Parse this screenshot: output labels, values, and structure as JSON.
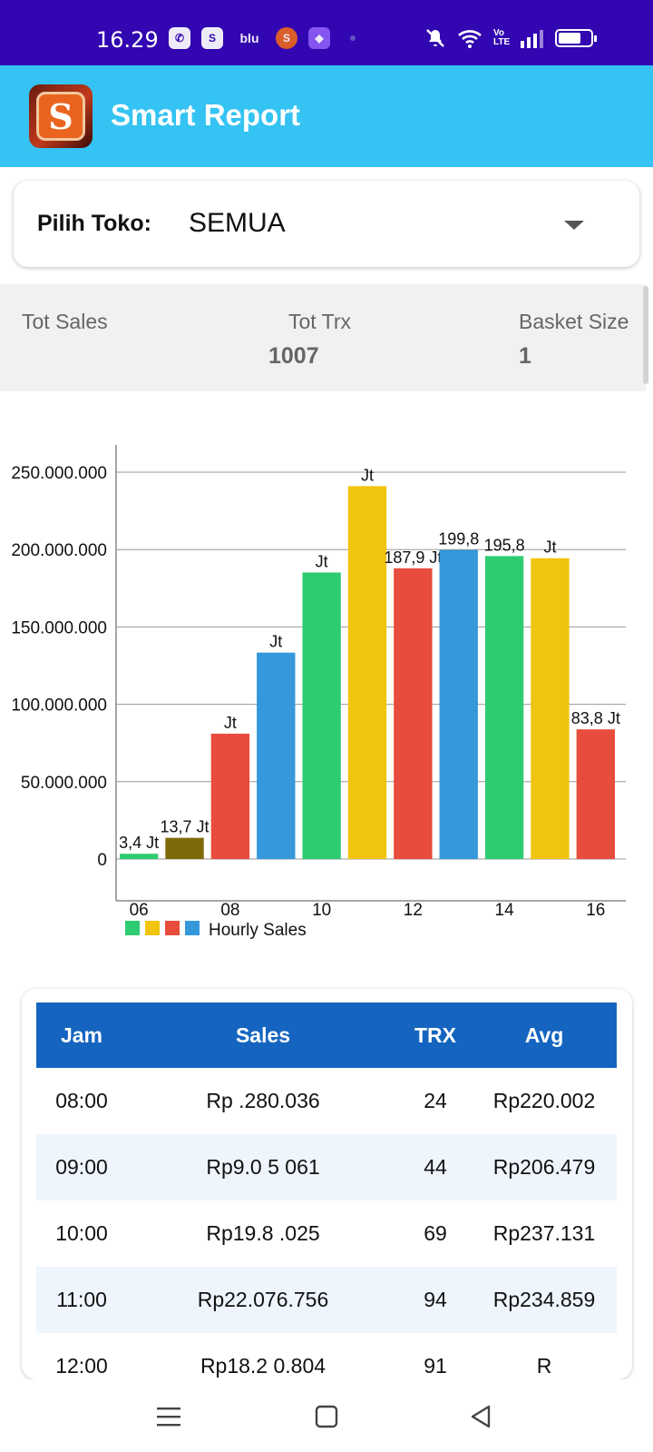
{
  "status_bar": {
    "time": "16.29",
    "left_icons": [
      "whatsapp-icon",
      "shopee-icon",
      "blu-icon",
      "shop-icon",
      "app-icon"
    ],
    "blu_text": "blu",
    "right_icons": [
      "mute-icon",
      "wifi-icon",
      "volte-icon",
      "signal-icon",
      "battery-icon"
    ],
    "volte_text": "Vo LTE"
  },
  "app_bar": {
    "logo_letter": "S",
    "title": "Smart Report"
  },
  "store_selector": {
    "label": "Pilih Toko:",
    "value": "SEMUA"
  },
  "summary": {
    "tot_sales_label": "Tot Sales",
    "tot_sales_value": "",
    "tot_trx_label": "Tot Trx",
    "tot_trx_value": "1007",
    "basket_size_label": "Basket Size",
    "basket_size_value": "1"
  },
  "chart_data": {
    "type": "bar",
    "categories": [
      "06",
      "07",
      "08",
      "09",
      "10",
      "11",
      "12",
      "13",
      "14",
      "15",
      "16"
    ],
    "x_tick_labels": [
      "06",
      "08",
      "10",
      "12",
      "14",
      "16"
    ],
    "values": [
      3400000,
      13700000,
      81000000,
      133400000,
      185200000,
      241000000,
      187900000,
      199800000,
      195800000,
      194400000,
      83800000
    ],
    "data_labels": [
      "3,4 Jt",
      "13,7 Jt",
      "Jt",
      "Jt",
      "Jt",
      "Jt",
      "187,9 Jt",
      "199,8",
      "195,8",
      "Jt",
      "83,8 Jt"
    ],
    "bar_colors": [
      "#2ecc71",
      "#7f6a0a",
      "#e74c3c",
      "#3498db",
      "#2ecc71",
      "#f1c40f",
      "#e74c3c",
      "#3498db",
      "#2ecc71",
      "#f1c40f",
      "#e74c3c"
    ],
    "y_ticks": [
      "0",
      "50.000.000",
      "100.000.000",
      "150.000.000",
      "200.000.000",
      "250.000.000"
    ],
    "ylim": [
      0,
      250000000
    ],
    "legend": {
      "colors": [
        "#2ecc71",
        "#f1c40f",
        "#e74c3c",
        "#3498db"
      ],
      "label": "Hourly Sales",
      "placement": "bottom-left"
    },
    "grid": true
  },
  "table": {
    "headers": [
      "Jam",
      "Sales",
      "TRX",
      "Avg"
    ],
    "rows": [
      [
        "08:00",
        "Rp .280.036",
        "24",
        "Rp220.002"
      ],
      [
        "09:00",
        "Rp9.0 5 061",
        "44",
        "Rp206.479"
      ],
      [
        "10:00",
        "Rp19.8 .025",
        "69",
        "Rp237.131"
      ],
      [
        "11:00",
        "Rp22.076.756",
        "94",
        "Rp234.859"
      ],
      [
        "12:00",
        "Rp18.2 0.804",
        "91",
        "R"
      ]
    ]
  },
  "nav_bar": {
    "buttons": [
      "menu-icon",
      "home-icon",
      "back-icon"
    ]
  }
}
